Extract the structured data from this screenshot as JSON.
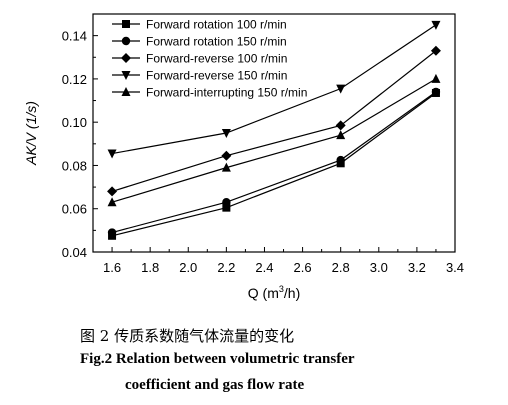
{
  "chart_data": {
    "type": "line",
    "xlabel_main": "Q (m",
    "xlabel_sup": "3",
    "xlabel_tail": "/h)",
    "ylabel": "AK/V (1/s)",
    "xlim": [
      1.5,
      3.4
    ],
    "ylim": [
      0.04,
      0.15
    ],
    "xticks": [
      1.6,
      1.8,
      2.0,
      2.2,
      2.4,
      2.6,
      2.8,
      3.0,
      3.2,
      3.4
    ],
    "xtick_labels": [
      "1.6",
      "1.8",
      "2.0",
      "2.2",
      "2.4",
      "2.6",
      "2.8",
      "3.0",
      "3.2",
      "3.4"
    ],
    "yticks": [
      0.04,
      0.06,
      0.08,
      0.1,
      0.12,
      0.14
    ],
    "ytick_labels": [
      "0.04",
      "0.06",
      "0.08",
      "0.10",
      "0.12",
      "0.14"
    ],
    "grid": false,
    "legend_position": "top-left",
    "x": [
      1.6,
      2.2,
      2.8,
      3.3
    ],
    "series": [
      {
        "name": "Forward rotation 100 r/min",
        "marker": "square",
        "values": [
          0.0475,
          0.0605,
          0.081,
          0.1135
        ]
      },
      {
        "name": "Forward rotation 150 r/min",
        "marker": "circle",
        "values": [
          0.049,
          0.063,
          0.0825,
          0.114
        ]
      },
      {
        "name": "Forward-reverse 100 r/min",
        "marker": "diamond",
        "values": [
          0.068,
          0.0845,
          0.0985,
          0.133
        ]
      },
      {
        "name": "Forward-reverse 150 r/min",
        "marker": "triangle-down",
        "values": [
          0.0855,
          0.095,
          0.1155,
          0.145
        ]
      },
      {
        "name": "Forward-interrupting 150 r/min",
        "marker": "triangle-up",
        "values": [
          0.063,
          0.079,
          0.094,
          0.12
        ]
      }
    ]
  },
  "captions": {
    "cn": "图 2  传质系数随气体流量的变化",
    "en_line1": "Fig.2  Relation between volumetric transfer",
    "en_line2": "coefficient and gas flow rate"
  }
}
